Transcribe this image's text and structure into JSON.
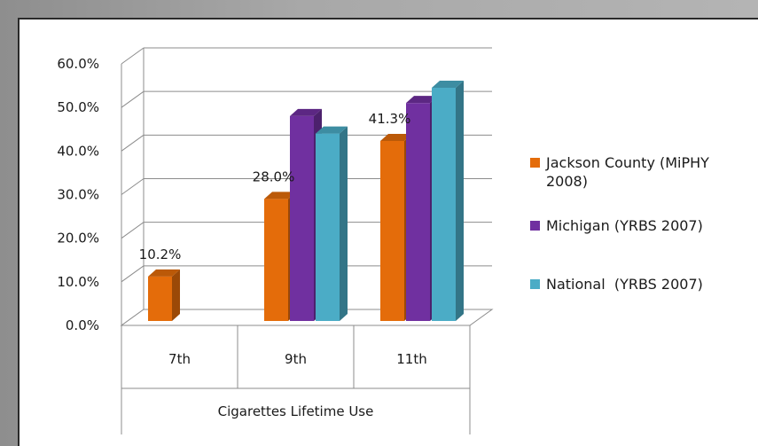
{
  "chart_data": {
    "type": "bar",
    "title": "",
    "xlabel": "Cigarettes Lifetime Use",
    "ylabel": "",
    "ylim": [
      0,
      60
    ],
    "y_ticks": [
      "0.0%",
      "10.0%",
      "20.0%",
      "30.0%",
      "40.0%",
      "50.0%",
      "60.0%"
    ],
    "y_tick_values": [
      0,
      10,
      20,
      30,
      40,
      50,
      60
    ],
    "categories": [
      "7th",
      "9th",
      "11th"
    ],
    "series": [
      {
        "name": "Jackson County (MiPHY 2008)",
        "color": "#e46c0a",
        "values": [
          10.2,
          28.0,
          41.3
        ],
        "labels": [
          "10.2%",
          "28.0%",
          "41.3%"
        ]
      },
      {
        "name": "Michigan (YRBS 2007)",
        "color": "#7030a0",
        "values": [
          null,
          47.0,
          50.0
        ],
        "labels": [
          null,
          null,
          null
        ]
      },
      {
        "name": "National  (YRBS 2007)",
        "color": "#4bacc6",
        "values": [
          null,
          43.0,
          53.5
        ],
        "labels": [
          null,
          null,
          null
        ]
      }
    ],
    "grid": true,
    "legend_position": "right",
    "three_d": true
  }
}
